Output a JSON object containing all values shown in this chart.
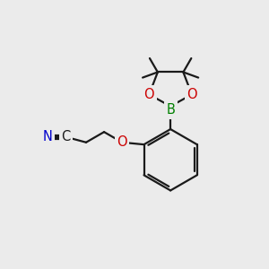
{
  "bg_color": "#ebebeb",
  "bond_color": "#1a1a1a",
  "atom_colors": {
    "N": "#0000cc",
    "O": "#cc0000",
    "B": "#008000"
  },
  "lw": 1.6,
  "fs": 10.5
}
